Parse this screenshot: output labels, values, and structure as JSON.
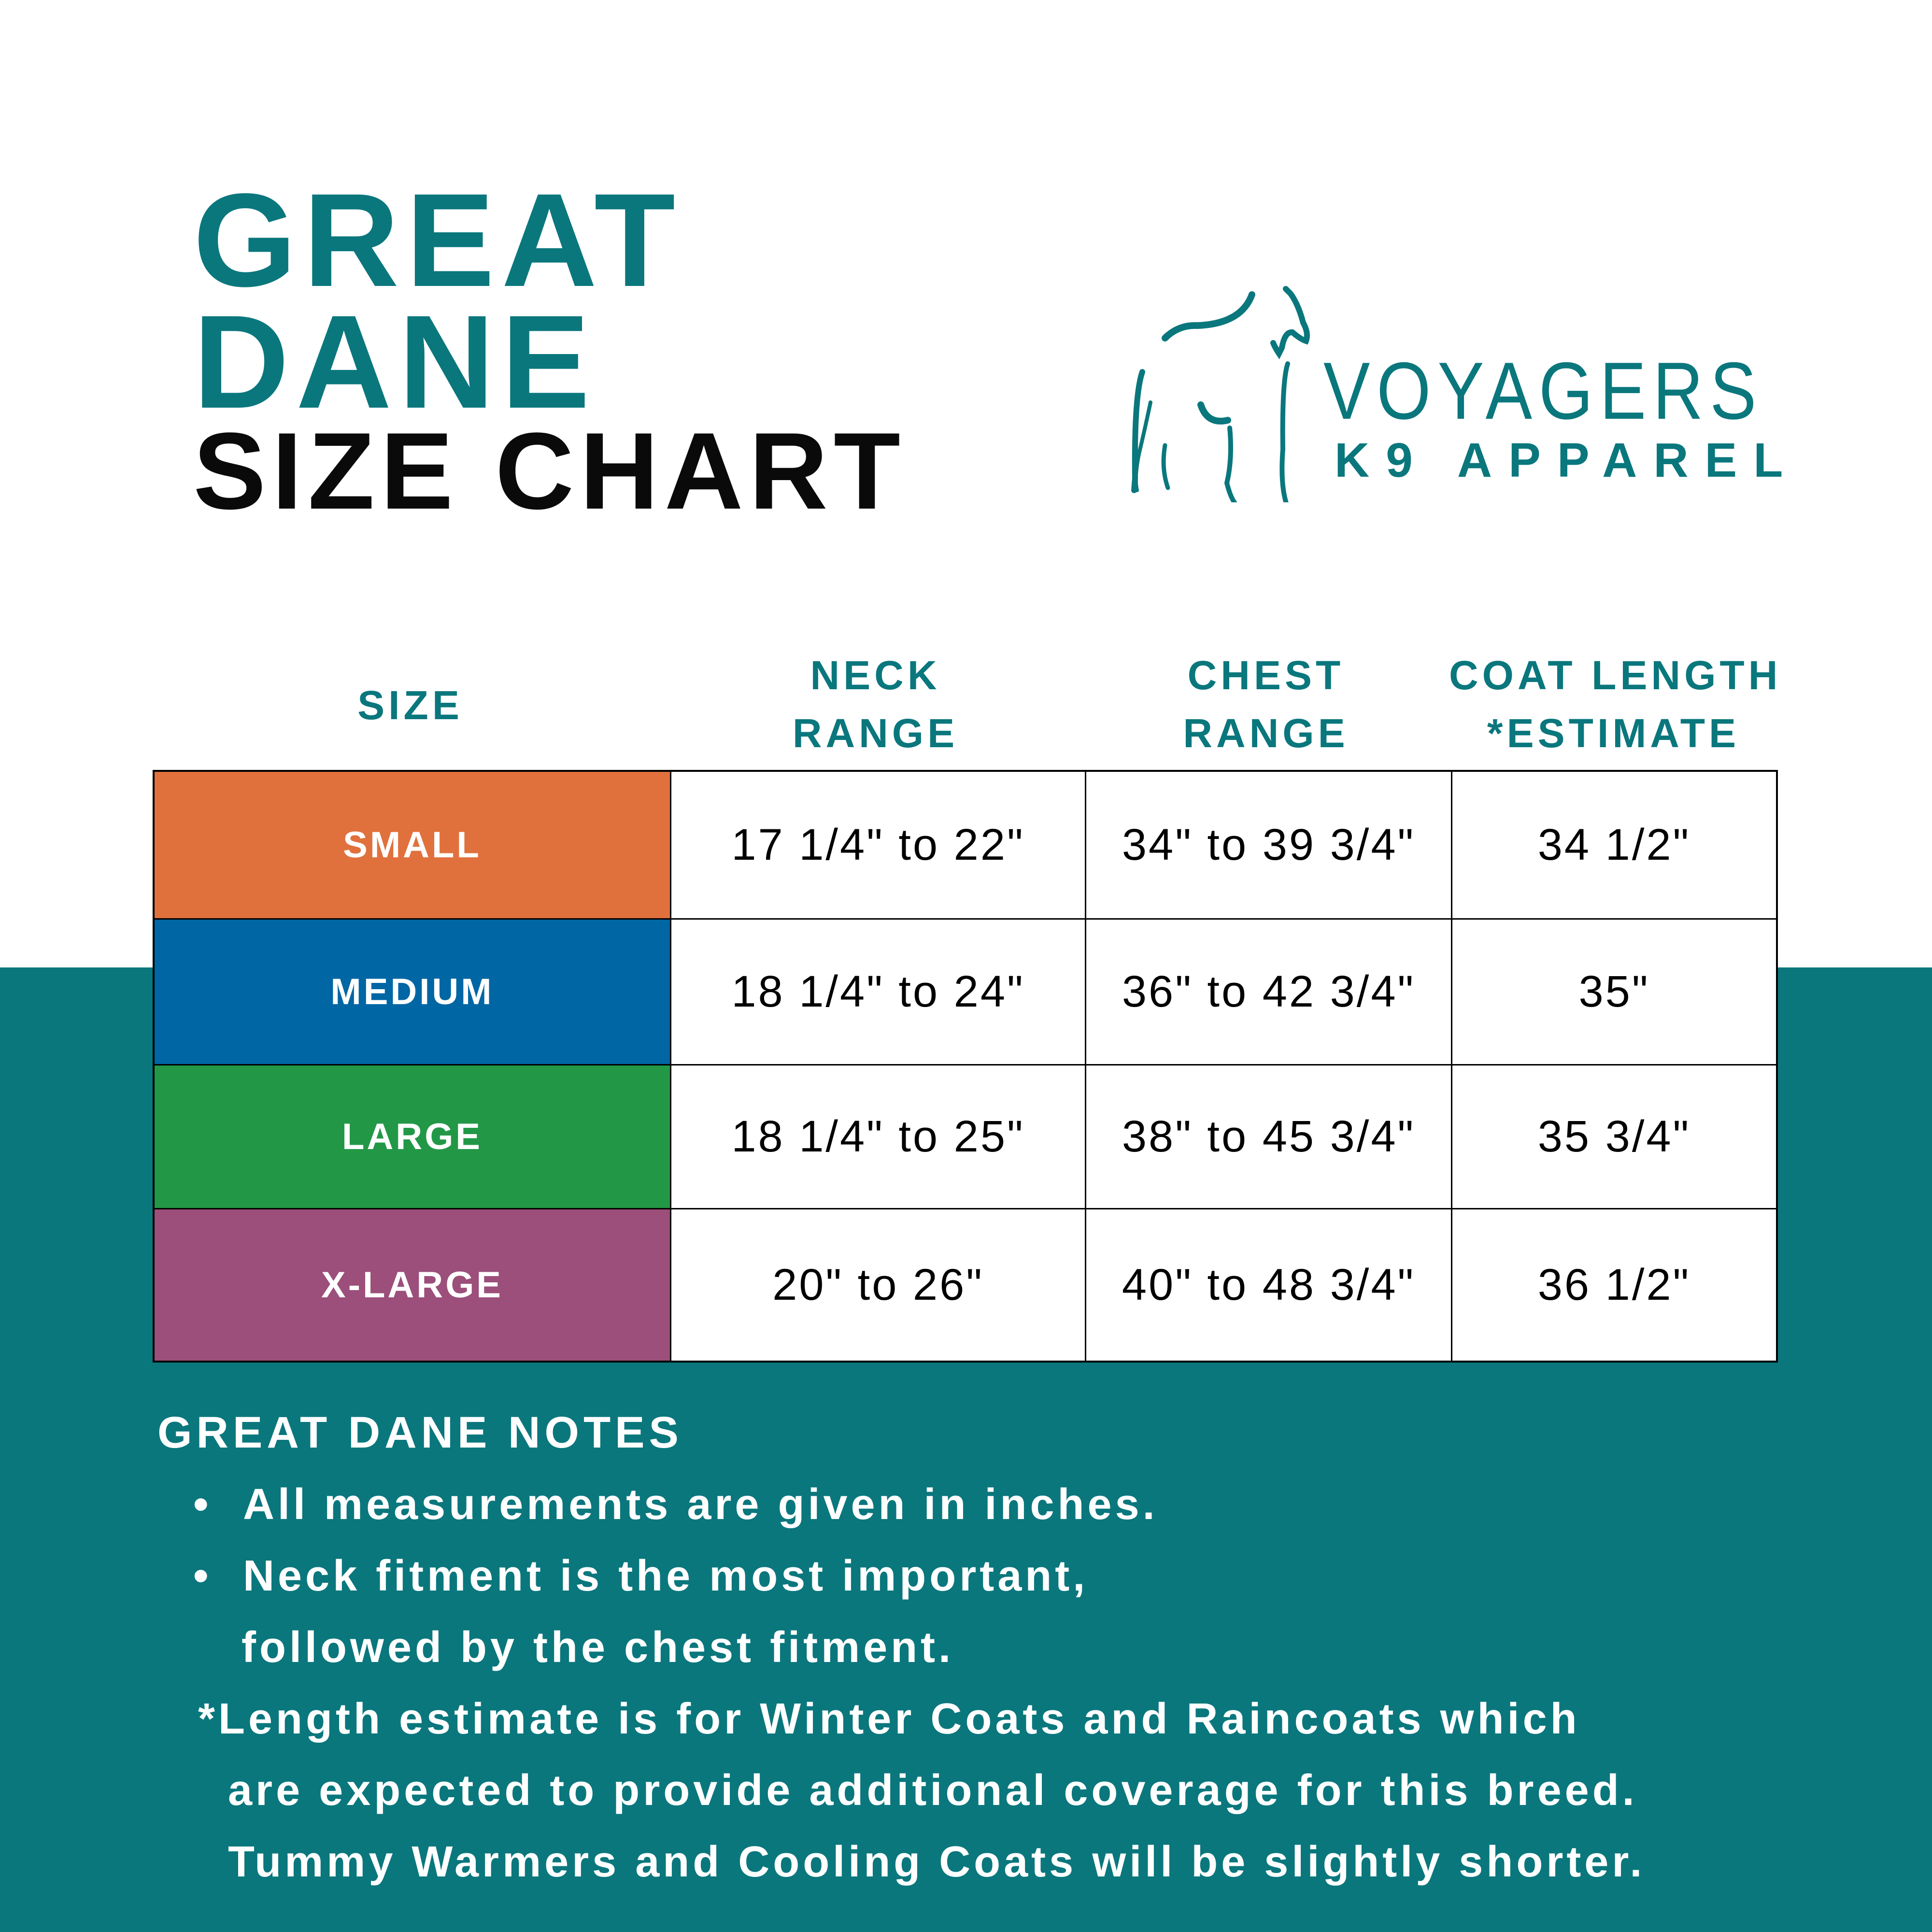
{
  "title": {
    "line1": "GREAT",
    "line2": "DANE",
    "line3": "SIZE CHART"
  },
  "logo": {
    "name": "VOYAGERS",
    "tagline": "K9 APPAREL",
    "icon": "greyhound-outline-icon"
  },
  "colors": {
    "teal": "#0a777d",
    "small": "#e0713d",
    "medium": "#0066a4",
    "large": "#229847",
    "xlarge": "#9b4f7a"
  },
  "table": {
    "headers": {
      "size": "SIZE",
      "neck": [
        "NECK",
        "RANGE"
      ],
      "chest": [
        "CHEST",
        "RANGE"
      ],
      "coat": [
        "COAT LENGTH",
        "*ESTIMATE"
      ]
    },
    "rows": [
      {
        "size": "SMALL",
        "neck": "17 1/4\" to 22\"",
        "chest": "34\" to 39 3/4\"",
        "coat": "34 1/2\""
      },
      {
        "size": "MEDIUM",
        "neck": "18 1/4\" to 24\"",
        "chest": "36\" to 42 3/4\"",
        "coat": "35\""
      },
      {
        "size": "LARGE",
        "neck": "18 1/4\" to 25\"",
        "chest": "38\" to 45 3/4\"",
        "coat": "35 3/4\""
      },
      {
        "size": "X-LARGE",
        "neck": "20\" to 26\"",
        "chest": "40\" to 48 3/4\"",
        "coat": "36 1/2\""
      }
    ]
  },
  "notes": {
    "heading": "GREAT DANE NOTES",
    "bullet1": "All measurements are given in inches.",
    "bullet2a": "Neck fitment is the most important,",
    "bullet2b": "followed by the chest fitment.",
    "foot1": "*Length estimate is for Winter Coats and Raincoats which",
    "foot2": "are expected to provide additional coverage for this breed.",
    "foot3": "Tummy Warmers and Cooling Coats will be slightly shorter."
  }
}
